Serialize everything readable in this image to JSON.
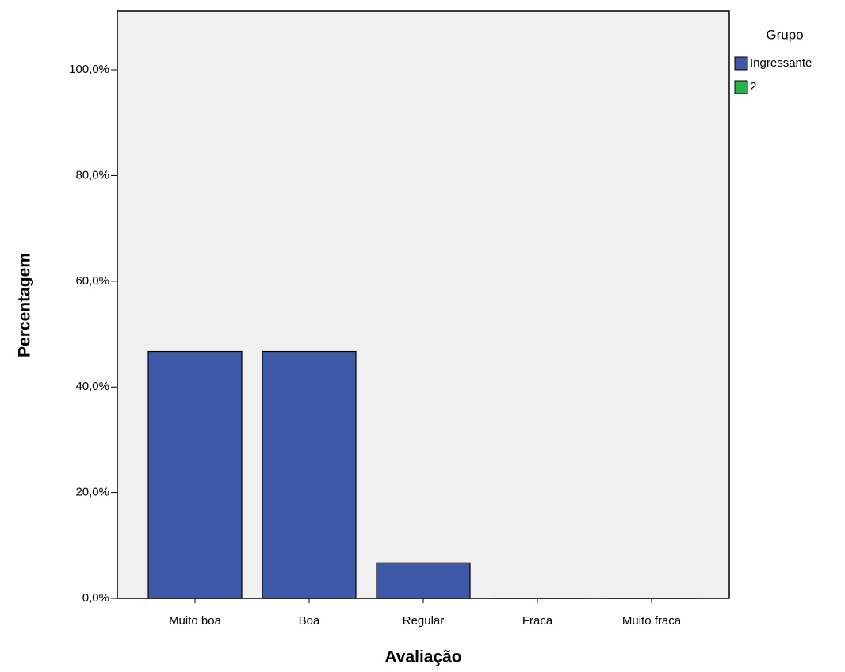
{
  "chart_data": {
    "type": "bar",
    "x_label": "Avaliação",
    "y_label": "Percentagem",
    "categories": [
      "Muito boa",
      "Boa",
      "Regular",
      "Fraca",
      "Muito fraca"
    ],
    "series": [
      {
        "name": "Ingressante",
        "color": "#3f59a9",
        "values": [
          46.7,
          46.7,
          6.7,
          0,
          0
        ]
      },
      {
        "name": "2",
        "color": "#2bb34a",
        "values": [
          null,
          null,
          null,
          null,
          null
        ]
      }
    ],
    "legend_title": "Grupo",
    "legend_position": "right",
    "ylim": [
      0,
      111.1
    ],
    "yticks": [
      {
        "value": 0,
        "label": "0,0%"
      },
      {
        "value": 20,
        "label": "20,0%"
      },
      {
        "value": 40,
        "label": "40,0%"
      },
      {
        "value": 60,
        "label": "60,0%"
      },
      {
        "value": 80,
        "label": "80,0%"
      },
      {
        "value": 100,
        "label": "100,0%"
      }
    ],
    "grid": false,
    "background": "#f0f0f0"
  }
}
